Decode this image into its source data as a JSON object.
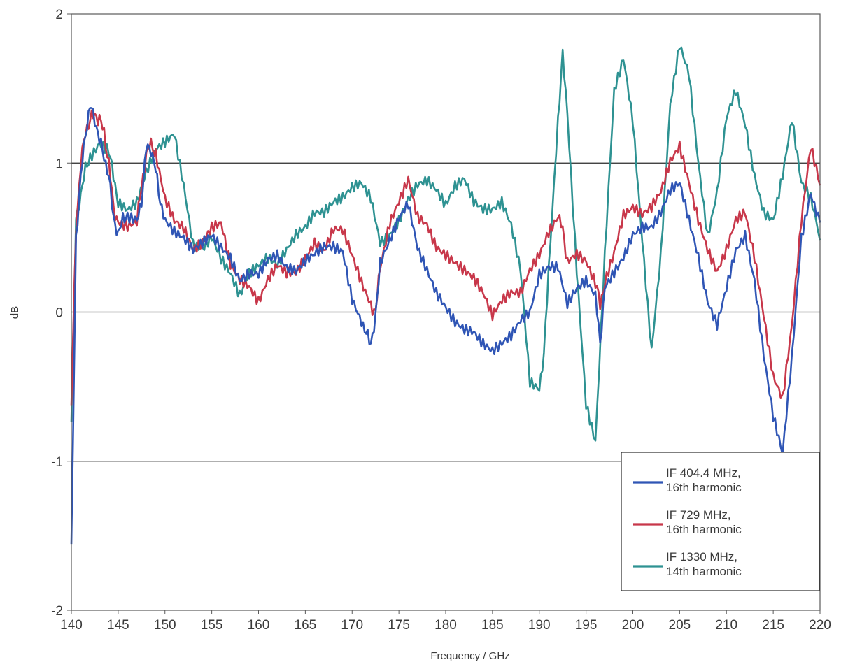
{
  "chart_data": {
    "type": "line",
    "title": "",
    "xlabel": "Frequency / GHz",
    "ylabel": "dB",
    "xlim": [
      140,
      220
    ],
    "ylim": [
      -2,
      2
    ],
    "xticks": [
      "140",
      "145",
      "150",
      "155",
      "160",
      "165",
      "170",
      "175",
      "180",
      "185",
      "190",
      "195",
      "200",
      "205",
      "210",
      "215",
      "220"
    ],
    "yticks": [
      "2",
      "1",
      "0",
      "-1",
      "-2"
    ],
    "grid": "horizontal",
    "legend_position": "bottom-right",
    "series": [
      {
        "name": "IF 404.4 MHz, 16th harmonic",
        "legend_lines": [
          "IF 404.4 MHz,",
          "16th harmonic"
        ],
        "color": "#2f55b5",
        "points": [
          [
            140,
            -1.6
          ],
          [
            140.5,
            0.5
          ],
          [
            141,
            0.9
          ],
          [
            141.5,
            1.2
          ],
          [
            142,
            1.38
          ],
          [
            142.5,
            1.3
          ],
          [
            143,
            1.15
          ],
          [
            143.5,
            1.05
          ],
          [
            144,
            0.9
          ],
          [
            144.5,
            0.65
          ],
          [
            145,
            0.5
          ],
          [
            145.5,
            0.65
          ],
          [
            146,
            0.62
          ],
          [
            147,
            0.6
          ],
          [
            147.5,
            0.75
          ],
          [
            148,
            1.1
          ],
          [
            148.5,
            1.1
          ],
          [
            149,
            0.95
          ],
          [
            149.5,
            0.75
          ],
          [
            150,
            0.6
          ],
          [
            151,
            0.52
          ],
          [
            152,
            0.48
          ],
          [
            153,
            0.4
          ],
          [
            154,
            0.45
          ],
          [
            155,
            0.5
          ],
          [
            156,
            0.42
          ],
          [
            157,
            0.35
          ],
          [
            158,
            0.2
          ],
          [
            159,
            0.25
          ],
          [
            160,
            0.25
          ],
          [
            161,
            0.35
          ],
          [
            162,
            0.38
          ],
          [
            163,
            0.3
          ],
          [
            164,
            0.28
          ],
          [
            165,
            0.35
          ],
          [
            166,
            0.4
          ],
          [
            167,
            0.45
          ],
          [
            168,
            0.45
          ],
          [
            169,
            0.42
          ],
          [
            170,
            0.1
          ],
          [
            171,
            -0.05
          ],
          [
            171.5,
            -0.15
          ],
          [
            172,
            -0.2
          ],
          [
            172.5,
            -0.05
          ],
          [
            173,
            0.35
          ],
          [
            174,
            0.5
          ],
          [
            175,
            0.65
          ],
          [
            176,
            0.75
          ],
          [
            177,
            0.45
          ],
          [
            178,
            0.3
          ],
          [
            179,
            0.15
          ],
          [
            180,
            0.05
          ],
          [
            181,
            -0.05
          ],
          [
            182,
            -0.1
          ],
          [
            183,
            -0.12
          ],
          [
            184,
            -0.2
          ],
          [
            185,
            -0.25
          ],
          [
            186,
            -0.2
          ],
          [
            187,
            -0.15
          ],
          [
            188,
            -0.05
          ],
          [
            189,
            0.0
          ],
          [
            190,
            0.25
          ],
          [
            191,
            0.3
          ],
          [
            192,
            0.3
          ],
          [
            193,
            0.05
          ],
          [
            194,
            0.15
          ],
          [
            195,
            0.2
          ],
          [
            196,
            0.1
          ],
          [
            196.5,
            -0.2
          ],
          [
            197,
            0.15
          ],
          [
            198,
            0.25
          ],
          [
            199,
            0.35
          ],
          [
            200,
            0.5
          ],
          [
            201,
            0.55
          ],
          [
            202,
            0.55
          ],
          [
            203,
            0.65
          ],
          [
            204,
            0.8
          ],
          [
            205,
            0.85
          ],
          [
            206,
            0.6
          ],
          [
            207,
            0.35
          ],
          [
            208,
            0.05
          ],
          [
            209,
            -0.1
          ],
          [
            210,
            0.15
          ],
          [
            211,
            0.4
          ],
          [
            212,
            0.5
          ],
          [
            213,
            0.2
          ],
          [
            214,
            -0.3
          ],
          [
            215,
            -0.7
          ],
          [
            216,
            -0.95
          ],
          [
            217,
            -0.3
          ],
          [
            218,
            0.5
          ],
          [
            219,
            0.8
          ],
          [
            220,
            0.6
          ]
        ]
      },
      {
        "name": "IF 729 MHz, 16th harmonic",
        "legend_lines": [
          "IF 729 MHz,",
          "16th harmonic"
        ],
        "color": "#c8374a",
        "points": [
          [
            140,
            -0.6
          ],
          [
            140.5,
            0.55
          ],
          [
            141,
            1.0
          ],
          [
            141.5,
            1.2
          ],
          [
            142,
            1.3
          ],
          [
            142.5,
            1.32
          ],
          [
            143,
            1.3
          ],
          [
            143.5,
            1.2
          ],
          [
            144,
            1.0
          ],
          [
            144.5,
            0.7
          ],
          [
            145,
            0.6
          ],
          [
            146,
            0.57
          ],
          [
            147,
            0.6
          ],
          [
            147.5,
            0.85
          ],
          [
            148,
            1.05
          ],
          [
            148.5,
            1.15
          ],
          [
            149,
            1.05
          ],
          [
            150,
            0.75
          ],
          [
            151,
            0.6
          ],
          [
            152,
            0.55
          ],
          [
            153,
            0.4
          ],
          [
            154,
            0.45
          ],
          [
            155,
            0.55
          ],
          [
            156,
            0.58
          ],
          [
            157,
            0.3
          ],
          [
            158,
            0.2
          ],
          [
            159,
            0.15
          ],
          [
            160,
            0.05
          ],
          [
            161,
            0.2
          ],
          [
            162,
            0.3
          ],
          [
            163,
            0.25
          ],
          [
            164,
            0.25
          ],
          [
            165,
            0.35
          ],
          [
            166,
            0.45
          ],
          [
            167,
            0.4
          ],
          [
            168,
            0.55
          ],
          [
            169,
            0.55
          ],
          [
            170,
            0.38
          ],
          [
            171,
            0.2
          ],
          [
            172,
            0.05
          ],
          [
            172.5,
            0.0
          ],
          [
            173,
            0.3
          ],
          [
            174,
            0.6
          ],
          [
            175,
            0.75
          ],
          [
            176,
            0.9
          ],
          [
            177,
            0.65
          ],
          [
            178,
            0.6
          ],
          [
            179,
            0.45
          ],
          [
            180,
            0.4
          ],
          [
            181,
            0.35
          ],
          [
            182,
            0.3
          ],
          [
            183,
            0.25
          ],
          [
            184,
            0.15
          ],
          [
            185,
            0.0
          ],
          [
            186,
            0.1
          ],
          [
            187,
            0.15
          ],
          [
            188,
            0.15
          ],
          [
            189,
            0.3
          ],
          [
            190,
            0.4
          ],
          [
            191,
            0.55
          ],
          [
            192,
            0.65
          ],
          [
            192.5,
            0.55
          ],
          [
            193,
            0.35
          ],
          [
            194,
            0.4
          ],
          [
            195,
            0.35
          ],
          [
            196,
            0.2
          ],
          [
            196.5,
            0.05
          ],
          [
            197,
            0.2
          ],
          [
            198,
            0.4
          ],
          [
            199,
            0.65
          ],
          [
            200,
            0.7
          ],
          [
            201,
            0.65
          ],
          [
            202,
            0.7
          ],
          [
            203,
            0.8
          ],
          [
            204,
            1.0
          ],
          [
            205,
            1.1
          ],
          [
            206,
            0.85
          ],
          [
            207,
            0.6
          ],
          [
            208,
            0.4
          ],
          [
            209,
            0.25
          ],
          [
            210,
            0.4
          ],
          [
            211,
            0.6
          ],
          [
            212,
            0.65
          ],
          [
            213,
            0.35
          ],
          [
            214,
            -0.05
          ],
          [
            215,
            -0.45
          ],
          [
            216,
            -0.6
          ],
          [
            217,
            -0.1
          ],
          [
            218,
            0.6
          ],
          [
            219,
            1.1
          ],
          [
            220,
            0.85
          ]
        ]
      },
      {
        "name": "IF 1330 MHz, 14th harmonic",
        "legend_lines": [
          "IF 1330 MHz,",
          "14th harmonic"
        ],
        "color": "#2e9292",
        "points": [
          [
            140,
            -0.7
          ],
          [
            140.5,
            0.6
          ],
          [
            141,
            0.8
          ],
          [
            141.5,
            0.95
          ],
          [
            142,
            1.05
          ],
          [
            143,
            1.15
          ],
          [
            144,
            1.1
          ],
          [
            144.5,
            0.9
          ],
          [
            145,
            0.75
          ],
          [
            146,
            0.7
          ],
          [
            147,
            0.75
          ],
          [
            148,
            0.95
          ],
          [
            149,
            1.1
          ],
          [
            150,
            1.15
          ],
          [
            151,
            1.2
          ],
          [
            152,
            0.85
          ],
          [
            153,
            0.45
          ],
          [
            154,
            0.42
          ],
          [
            155,
            0.5
          ],
          [
            156,
            0.35
          ],
          [
            157,
            0.25
          ],
          [
            158,
            0.1
          ],
          [
            159,
            0.25
          ],
          [
            160,
            0.3
          ],
          [
            161,
            0.35
          ],
          [
            162,
            0.3
          ],
          [
            163,
            0.4
          ],
          [
            164,
            0.5
          ],
          [
            165,
            0.55
          ],
          [
            166,
            0.65
          ],
          [
            167,
            0.65
          ],
          [
            168,
            0.72
          ],
          [
            169,
            0.75
          ],
          [
            170,
            0.82
          ],
          [
            171,
            0.85
          ],
          [
            172,
            0.75
          ],
          [
            173,
            0.45
          ],
          [
            174,
            0.5
          ],
          [
            175,
            0.6
          ],
          [
            176,
            0.75
          ],
          [
            177,
            0.85
          ],
          [
            178,
            0.88
          ],
          [
            179,
            0.82
          ],
          [
            180,
            0.72
          ],
          [
            181,
            0.85
          ],
          [
            182,
            0.9
          ],
          [
            183,
            0.75
          ],
          [
            184,
            0.7
          ],
          [
            185,
            0.7
          ],
          [
            186,
            0.75
          ],
          [
            187,
            0.6
          ],
          [
            188,
            0.3
          ],
          [
            189,
            -0.45
          ],
          [
            190,
            -0.5
          ],
          [
            190.5,
            -0.3
          ],
          [
            191,
            0.3
          ],
          [
            192,
            1.3
          ],
          [
            192.5,
            1.72
          ],
          [
            193,
            1.35
          ],
          [
            194,
            0.3
          ],
          [
            195,
            -0.6
          ],
          [
            196,
            -0.85
          ],
          [
            197,
            0.4
          ],
          [
            198,
            1.5
          ],
          [
            199,
            1.72
          ],
          [
            200,
            1.3
          ],
          [
            201,
            0.5
          ],
          [
            202,
            -0.25
          ],
          [
            203,
            0.4
          ],
          [
            204,
            1.4
          ],
          [
            205,
            1.8
          ],
          [
            206,
            1.6
          ],
          [
            207,
            1.0
          ],
          [
            208,
            0.5
          ],
          [
            209,
            0.8
          ],
          [
            210,
            1.3
          ],
          [
            211,
            1.48
          ],
          [
            212,
            1.25
          ],
          [
            213,
            0.9
          ],
          [
            214,
            0.65
          ],
          [
            215,
            0.6
          ],
          [
            216,
            0.9
          ],
          [
            217,
            1.28
          ],
          [
            218,
            0.85
          ],
          [
            219,
            0.75
          ],
          [
            220,
            0.48
          ]
        ]
      }
    ]
  }
}
